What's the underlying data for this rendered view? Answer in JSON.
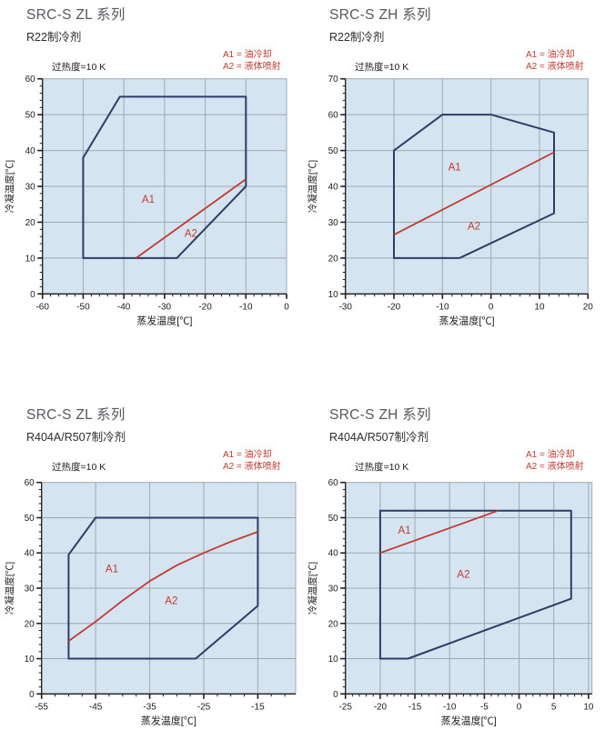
{
  "colors": {
    "plot_bg": "#d5e4f1",
    "grid": "#9fa8b0",
    "axis": "#1d1d1f",
    "envelope": "#2e3d65",
    "divider": "#c2392f",
    "title": "#55595e",
    "subtitle": "#2d2d2d"
  },
  "chart_data": [
    {
      "type": "line",
      "title": "SRC-S ZL 系列",
      "subtitle": "R22制冷剂",
      "annotation": "过热度=10 K",
      "legend": [
        "A1 = 油冷却",
        "A2 = 液体喷射"
      ],
      "xlabel": "蒸发温度[℃]",
      "ylabel": "冷凝温度[℃]",
      "xlim": [
        -60,
        0
      ],
      "ylim": [
        0,
        60
      ],
      "xticks": [
        -60,
        -50,
        -40,
        -30,
        -20,
        -10,
        0
      ],
      "yticks": [
        0,
        10,
        20,
        30,
        40,
        50,
        60
      ],
      "xminor": 2,
      "yminor": 2,
      "envelope": [
        [
          -50,
          10
        ],
        [
          -50,
          38
        ],
        [
          -41,
          55
        ],
        [
          -10,
          55
        ],
        [
          -10,
          30
        ],
        [
          -27,
          10
        ]
      ],
      "divider": [
        [
          -37,
          10
        ],
        [
          -10,
          32
        ]
      ],
      "region_labels": [
        {
          "text": "A1",
          "x": -34,
          "y": 26.5
        },
        {
          "text": "A2",
          "x": -23.5,
          "y": 17
        }
      ]
    },
    {
      "type": "line",
      "title": "SRC-S ZH 系列",
      "subtitle": "R22制冷剂",
      "annotation": "过热度=10 K",
      "legend": [
        "A1 = 油冷却",
        "A2 = 液体喷射"
      ],
      "xlabel": "蒸发温度[℃]",
      "ylabel": "冷凝温度[℃]",
      "xlim": [
        -30,
        20
      ],
      "ylim": [
        10,
        70
      ],
      "xticks": [
        -30,
        -20,
        -10,
        0,
        10,
        20
      ],
      "yticks": [
        10,
        20,
        30,
        40,
        50,
        60,
        70
      ],
      "xminor": 2,
      "yminor": 2,
      "envelope": [
        [
          -20,
          20
        ],
        [
          -20,
          50
        ],
        [
          -10,
          60
        ],
        [
          0,
          60
        ],
        [
          13,
          55
        ],
        [
          13,
          32.5
        ],
        [
          -6.5,
          20
        ]
      ],
      "divider": [
        [
          -20,
          26.5
        ],
        [
          13,
          49.5
        ]
      ],
      "region_labels": [
        {
          "text": "A1",
          "x": -7.5,
          "y": 45.5
        },
        {
          "text": "A2",
          "x": -3.5,
          "y": 29
        }
      ]
    },
    {
      "type": "line",
      "title": "SRC-S ZL 系列",
      "subtitle": "R404A/R507制冷剂",
      "annotation": "过热度=10 K",
      "legend": [
        "A1 = 油冷却",
        "A2 = 液体喷射"
      ],
      "xlabel": "蒸发温度[℃]",
      "ylabel": "冷凝温度[℃]",
      "xlim": [
        -55,
        -8
      ],
      "ylim": [
        0,
        60
      ],
      "xticks": [
        -55,
        -45,
        -35,
        -25,
        -15
      ],
      "yticks": [
        0,
        10,
        20,
        30,
        40,
        50,
        60
      ],
      "xminor": 2.5,
      "yminor": 2,
      "envelope": [
        [
          -50,
          10
        ],
        [
          -50,
          39.5
        ],
        [
          -45,
          50
        ],
        [
          -15,
          50
        ],
        [
          -15,
          25
        ],
        [
          -26.5,
          10
        ]
      ],
      "divider": [
        [
          -50,
          15
        ],
        [
          -45,
          20.5
        ],
        [
          -40,
          26.5
        ],
        [
          -35,
          32
        ],
        [
          -30,
          36.5
        ],
        [
          -25,
          40
        ],
        [
          -20,
          43.2
        ],
        [
          -15,
          46
        ]
      ],
      "region_labels": [
        {
          "text": "A1",
          "x": -42,
          "y": 35.5
        },
        {
          "text": "A2",
          "x": -31,
          "y": 26.5
        }
      ]
    },
    {
      "type": "line",
      "title": "SRC-S ZH 系列",
      "subtitle": "R404A/R507制冷剂",
      "annotation": "过热度=10 K",
      "legend": [
        "A1 = 油冷却",
        "A2 = 液体喷射"
      ],
      "xlabel": "蒸发温度[℃]",
      "ylabel": "冷凝温度[℃]",
      "xlim": [
        -25,
        10.5
      ],
      "ylim": [
        0,
        60
      ],
      "xticks": [
        -25,
        -20,
        -15,
        -10,
        -5,
        0,
        5,
        10
      ],
      "yticks": [
        0,
        10,
        20,
        30,
        40,
        50,
        60
      ],
      "xminor": 1,
      "yminor": 2,
      "envelope": [
        [
          -20,
          10
        ],
        [
          -20,
          52
        ],
        [
          7.5,
          52
        ],
        [
          7.5,
          27
        ],
        [
          -16,
          10
        ]
      ],
      "divider": [
        [
          -20,
          40
        ],
        [
          -3,
          52
        ]
      ],
      "region_labels": [
        {
          "text": "A1",
          "x": -16.5,
          "y": 46.5
        },
        {
          "text": "A2",
          "x": -8,
          "y": 34
        }
      ]
    }
  ]
}
